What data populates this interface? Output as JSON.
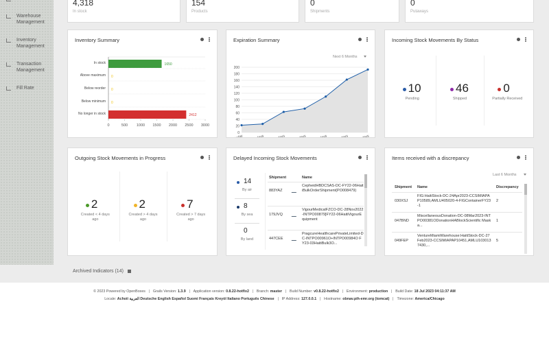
{
  "sidebar": [
    "Dashboard",
    "Warehouse Management",
    "Inventory Management",
    "Transaction Management",
    "Fill Rate"
  ],
  "stats": [
    {
      "value": "4,318",
      "label": "In stock"
    },
    {
      "value": "154",
      "label": "Products"
    },
    {
      "value": "0",
      "label": "Shipments"
    },
    {
      "value": "0",
      "label": "Putaways"
    }
  ],
  "chart_data": [
    {
      "type": "bar",
      "orientation": "horizontal",
      "title": "Inventory Summary",
      "categories": [
        "In stock",
        "Above maximum",
        "Below reorder",
        "Below minimum",
        "No longer in stock"
      ],
      "values": [
        1650,
        0,
        0,
        0,
        2412
      ],
      "colors": [
        "#3e9b3e",
        "#f0c419",
        "#f0c419",
        "#f0c419",
        "#d32f2f"
      ],
      "xlim": [
        0,
        3000
      ],
      "xticks": [
        0,
        500,
        1000,
        1500,
        2000,
        2500,
        3000
      ]
    },
    {
      "type": "line",
      "title": "Expiration Summary",
      "filter": "Next 6 Months",
      "categories": [
        "today",
        "within 30 days",
        "within 60 days",
        "within 90 days",
        "within 120 days",
        "within 150 days",
        "within 180 days"
      ],
      "values": [
        22,
        26,
        63,
        73,
        110,
        162,
        193
      ],
      "color": "#1f5fa8",
      "ylim": [
        0,
        200
      ],
      "yticks": [
        0,
        20,
        40,
        60,
        80,
        100,
        120,
        140,
        160,
        180,
        200
      ],
      "grid": true
    }
  ],
  "incoming_status": {
    "title": "Incoming Stock Movements By Status",
    "items": [
      {
        "value": 10,
        "label": "Pending",
        "color": "#2a5ca8"
      },
      {
        "value": 46,
        "label": "Shipped",
        "color": "#8e2aa8"
      },
      {
        "value": 0,
        "label": "Partially Received",
        "color": "#c9302c"
      }
    ]
  },
  "outgoing": {
    "title": "Outgoing Stock Movements in Progress",
    "items": [
      {
        "value": 2,
        "label": "Created < 4 days ago",
        "color": "#4c9a2a"
      },
      {
        "value": 2,
        "label": "Created > 4 days ago",
        "color": "#f0b429"
      },
      {
        "value": 7,
        "label": "Created > 7 days ago",
        "color": "#c9302c"
      }
    ]
  },
  "delayed": {
    "title": "Delayed Incoming Stock Movements",
    "summary": [
      {
        "value": 14,
        "label": "By air",
        "color": "#2a5ca8"
      },
      {
        "value": 8,
        "label": "By sea",
        "color": "#1a3a6a"
      },
      {
        "value": 0,
        "label": "By land"
      }
    ],
    "columns": [
      "Shipment",
      "Name"
    ],
    "rows": [
      [
        "883YAZ",
        "CepheidHBDCSAS-DC-FY22-06HaitiBulkOrderShipment(PO008479)"
      ],
      [
        "179JVQ",
        "VigourMedicalFZCO-DC-28Nov2022-INTPO00879]FY22-06HaitiVigourEquipment"
      ],
      [
        "447CEE",
        "PragcureHealthcarePrivateLimited-DC-INTPO00961O+INTPO00984O FY23-03HaitiBulk3O..."
      ]
    ]
  },
  "discrepancy": {
    "title": "Items received with a discrepancy",
    "filter": "Last 6 Months",
    "columns": [
      "Shipment",
      "Name",
      "Discrepancy"
    ],
    "rows": [
      [
        "030XSJ",
        "FIG:HaitiStock-DC-24Apr2023-CCSIMIAPAP10589,AMLU405020-4-FIGContainerFY23-1",
        "2"
      ],
      [
        "047BND",
        "MiscellaneousDonation-DC-08Mar2023-INTPO00381ODonationHABlockScientific Maska...",
        "1"
      ],
      [
        "049FEP",
        "VentureMiamiWarehouse:HaitiStock-DC-27Feb2023-CCSIMIAPAP10451,AMLU1030137430,...",
        "5"
      ]
    ]
  },
  "archived": "Archived Indicators (14)",
  "footer": {
    "line1": [
      {
        "label": "© 2023 Powered by OpenBoxes",
        "value": ""
      },
      {
        "label": "Grails Version:",
        "value": "1.3.9"
      },
      {
        "label": "Application version:",
        "value": "0.8.22-hotfix2"
      },
      {
        "label": "Branch:",
        "value": "master"
      },
      {
        "label": "Build Number:",
        "value": "v0.8.22-hotfix2"
      },
      {
        "label": "Environment:",
        "value": "production"
      },
      {
        "label": "Build Date:",
        "value": "18 Jul 2023 04:11:37 AM"
      }
    ],
    "line2": [
      {
        "label": "Locale:",
        "value": "Achoii العربية Deutsche English Español Suomi Français Kreyòl Italiano Português Chinese"
      },
      {
        "label": "IP Address:",
        "value": "127.0.0.1"
      },
      {
        "label": "Hostname:",
        "value": "obnav.pih-emr.org (tomcat)"
      },
      {
        "label": "Timezone:",
        "value": "America/Chicago"
      }
    ]
  }
}
